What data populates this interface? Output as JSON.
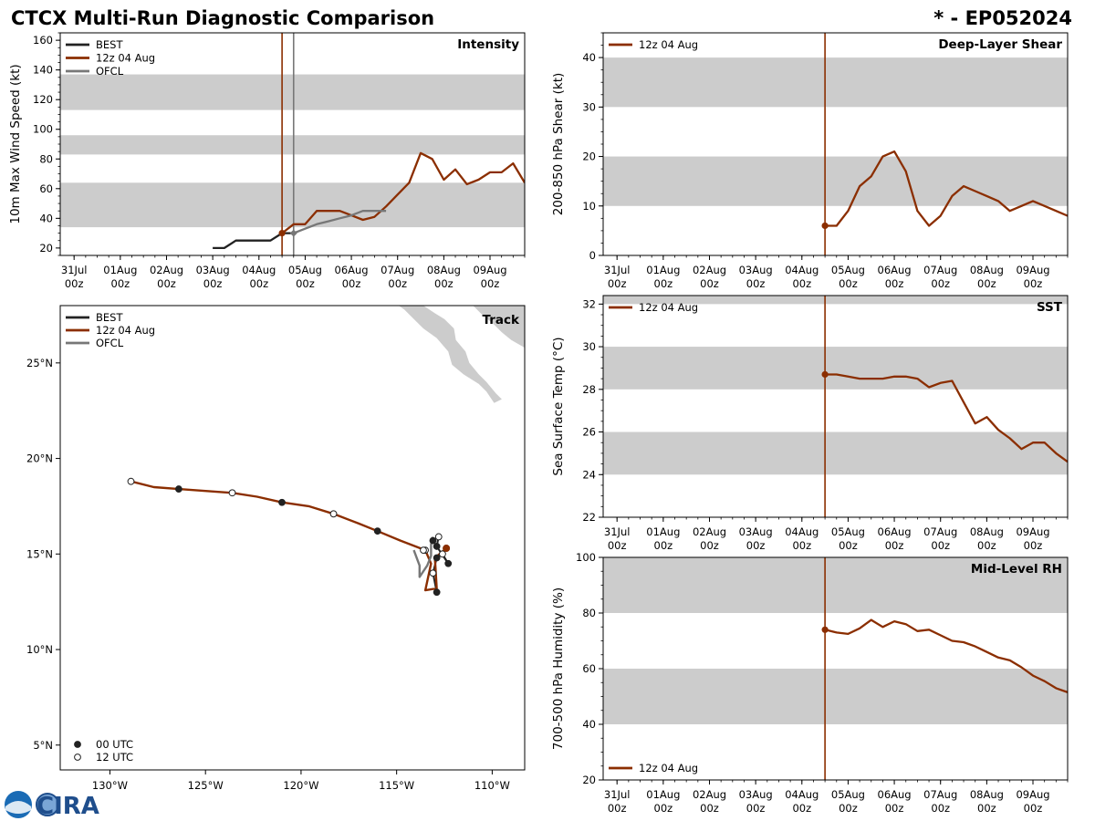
{
  "header": {
    "title": "CTCX Multi-Run Diagnostic Comparison",
    "storm": "* - EP052024"
  },
  "colors": {
    "best": "#222222",
    "run": "#8b2e00",
    "ofcl": "#777777",
    "band": "#cccccc",
    "land": "#cccccc"
  },
  "logo": {
    "text": "CIRA",
    "seal_text": "NOAA"
  },
  "chart_data": [
    {
      "id": "intensity",
      "type": "line",
      "title": "Intensity",
      "ylabel": "10m Max Wind Speed (kt)",
      "xlabel": "",
      "xlim": [
        -0.3,
        9.75
      ],
      "ylim": [
        15,
        165
      ],
      "yticks": [
        20,
        40,
        60,
        80,
        100,
        120,
        140,
        160
      ],
      "xticks": [
        0,
        1,
        2,
        3,
        4,
        5,
        6,
        7,
        8,
        9
      ],
      "xtick_labels": [
        [
          "31Jul",
          "00z"
        ],
        [
          "01Aug",
          "00z"
        ],
        [
          "02Aug",
          "00z"
        ],
        [
          "03Aug",
          "00z"
        ],
        [
          "04Aug",
          "00z"
        ],
        [
          "05Aug",
          "00z"
        ],
        [
          "06Aug",
          "00z"
        ],
        [
          "07Aug",
          "00z"
        ],
        [
          "08Aug",
          "00z"
        ],
        [
          "09Aug",
          "00z"
        ]
      ],
      "bands": [
        [
          34,
          64
        ],
        [
          83,
          96
        ],
        [
          113,
          137
        ]
      ],
      "vlines": [
        {
          "x": 4.5,
          "series": "run"
        },
        {
          "x": 4.75,
          "series": "ofcl"
        }
      ],
      "legend": [
        {
          "label": "BEST",
          "series": "best"
        },
        {
          "label": "12z 04 Aug",
          "series": "run"
        },
        {
          "label": "OFCL",
          "series": "ofcl"
        }
      ],
      "series": [
        {
          "name": "BEST",
          "key": "best",
          "x": [
            3.0,
            3.25,
            3.5,
            3.75,
            4.0,
            4.25,
            4.5,
            4.75
          ],
          "y": [
            20,
            20,
            25,
            25,
            25,
            25,
            30,
            30
          ]
        },
        {
          "name": "12z 04 Aug",
          "key": "run",
          "x": [
            4.5,
            4.75,
            5.0,
            5.25,
            5.5,
            5.75,
            6.0,
            6.25,
            6.5,
            6.75,
            7.0,
            7.25,
            7.5,
            7.75,
            8.0,
            8.25,
            8.5,
            8.75,
            9.0,
            9.25,
            9.5,
            9.75
          ],
          "y": [
            30,
            36,
            36,
            45,
            45,
            45,
            42,
            39,
            41,
            48,
            56,
            64,
            84,
            80,
            66,
            73,
            63,
            66,
            71,
            71,
            77,
            64
          ],
          "start_marker": true
        },
        {
          "name": "OFCL",
          "key": "ofcl",
          "x": [
            4.75,
            5.0,
            5.25,
            5.5,
            5.75,
            6.0,
            6.25,
            6.5,
            6.75
          ],
          "y": [
            30,
            33,
            36,
            38,
            40,
            42,
            45,
            45,
            45
          ],
          "start_marker": true,
          "marker": "diamond"
        }
      ]
    },
    {
      "id": "shear",
      "type": "line",
      "title": "Deep-Layer Shear",
      "ylabel": "200-850 hPa Shear (kt)",
      "xlabel": "",
      "xlim": [
        -0.3,
        9.75
      ],
      "ylim": [
        0,
        45
      ],
      "yticks": [
        0,
        10,
        20,
        30,
        40
      ],
      "xticks": [
        0,
        1,
        2,
        3,
        4,
        5,
        6,
        7,
        8,
        9
      ],
      "xtick_labels": [
        [
          "31Jul",
          "00z"
        ],
        [
          "01Aug",
          "00z"
        ],
        [
          "02Aug",
          "00z"
        ],
        [
          "03Aug",
          "00z"
        ],
        [
          "04Aug",
          "00z"
        ],
        [
          "05Aug",
          "00z"
        ],
        [
          "06Aug",
          "00z"
        ],
        [
          "07Aug",
          "00z"
        ],
        [
          "08Aug",
          "00z"
        ],
        [
          "09Aug",
          "00z"
        ]
      ],
      "bands": [
        [
          10,
          20
        ],
        [
          30,
          40
        ]
      ],
      "vlines": [
        {
          "x": 4.5,
          "series": "run"
        }
      ],
      "legend": [
        {
          "label": "12z 04 Aug",
          "series": "run"
        }
      ],
      "series": [
        {
          "name": "12z 04 Aug",
          "key": "run",
          "x": [
            4.5,
            4.75,
            5.0,
            5.25,
            5.5,
            5.75,
            6.0,
            6.25,
            6.5,
            6.75,
            7.0,
            7.25,
            7.5,
            7.75,
            8.0,
            8.25,
            8.5,
            8.75,
            9.0,
            9.25,
            9.5,
            9.75
          ],
          "y": [
            6,
            6,
            9,
            14,
            16,
            20,
            21,
            17,
            9,
            6,
            8,
            12,
            14,
            13,
            12,
            11,
            9,
            10,
            11,
            10,
            9,
            8
          ],
          "start_marker": true
        }
      ]
    },
    {
      "id": "sst",
      "type": "line",
      "title": "SST",
      "ylabel": "Sea Surface Temp (°C)",
      "xlabel": "",
      "xlim": [
        -0.3,
        9.75
      ],
      "ylim": [
        22,
        32.4
      ],
      "yticks": [
        22,
        24,
        26,
        28,
        30,
        32
      ],
      "xticks": [
        0,
        1,
        2,
        3,
        4,
        5,
        6,
        7,
        8,
        9
      ],
      "xtick_labels": [
        [
          "31Jul",
          "00z"
        ],
        [
          "01Aug",
          "00z"
        ],
        [
          "02Aug",
          "00z"
        ],
        [
          "03Aug",
          "00z"
        ],
        [
          "04Aug",
          "00z"
        ],
        [
          "05Aug",
          "00z"
        ],
        [
          "06Aug",
          "00z"
        ],
        [
          "07Aug",
          "00z"
        ],
        [
          "08Aug",
          "00z"
        ],
        [
          "09Aug",
          "00z"
        ]
      ],
      "bands": [
        [
          24,
          26
        ],
        [
          28,
          30
        ],
        [
          32,
          34
        ]
      ],
      "vlines": [
        {
          "x": 4.5,
          "series": "run"
        }
      ],
      "legend": [
        {
          "label": "12z 04 Aug",
          "series": "run"
        }
      ],
      "series": [
        {
          "name": "12z 04 Aug",
          "key": "run",
          "x": [
            4.5,
            4.75,
            5.0,
            5.25,
            5.5,
            5.75,
            6.0,
            6.25,
            6.5,
            6.75,
            7.0,
            7.25,
            7.5,
            7.75,
            8.0,
            8.25,
            8.5,
            8.75,
            9.0,
            9.25,
            9.5,
            9.75
          ],
          "y": [
            28.7,
            28.7,
            28.6,
            28.5,
            28.5,
            28.5,
            28.6,
            28.6,
            28.5,
            28.1,
            28.3,
            28.4,
            27.4,
            26.4,
            26.7,
            26.1,
            25.7,
            25.2,
            25.5,
            25.5,
            25.0,
            24.6
          ],
          "start_marker": true
        }
      ]
    },
    {
      "id": "rh",
      "type": "line",
      "title": "Mid-Level RH",
      "ylabel": "700-500 hPa Humidity (%)",
      "xlabel": "",
      "xlim": [
        -0.3,
        9.75
      ],
      "ylim": [
        20,
        100
      ],
      "yticks": [
        20,
        40,
        60,
        80,
        100
      ],
      "xticks": [
        0,
        1,
        2,
        3,
        4,
        5,
        6,
        7,
        8,
        9
      ],
      "xtick_labels": [
        [
          "31Jul",
          "00z"
        ],
        [
          "01Aug",
          "00z"
        ],
        [
          "02Aug",
          "00z"
        ],
        [
          "03Aug",
          "00z"
        ],
        [
          "04Aug",
          "00z"
        ],
        [
          "05Aug",
          "00z"
        ],
        [
          "06Aug",
          "00z"
        ],
        [
          "07Aug",
          "00z"
        ],
        [
          "08Aug",
          "00z"
        ],
        [
          "09Aug",
          "00z"
        ]
      ],
      "bands": [
        [
          40,
          60
        ],
        [
          80,
          100
        ]
      ],
      "vlines": [
        {
          "x": 4.5,
          "series": "run"
        }
      ],
      "legend": [
        {
          "label": "12z 04 Aug",
          "series": "run"
        }
      ],
      "legend_loc": "lower-left",
      "series": [
        {
          "name": "12z 04 Aug",
          "key": "run",
          "x": [
            4.5,
            4.75,
            5.0,
            5.25,
            5.5,
            5.75,
            6.0,
            6.25,
            6.5,
            6.75,
            7.0,
            7.25,
            7.5,
            7.75,
            8.0,
            8.25,
            8.5,
            8.75,
            9.0,
            9.25,
            9.5,
            9.75
          ],
          "y": [
            74,
            73,
            72.5,
            74.5,
            77.5,
            75,
            77,
            76,
            73.5,
            74,
            72,
            70,
            69.5,
            68,
            66,
            64,
            63,
            60.5,
            57.5,
            55.5,
            53,
            51.5
          ],
          "start_marker": true
        }
      ]
    },
    {
      "id": "track",
      "type": "scatter",
      "title": "Track",
      "xlabel": "",
      "ylabel": "",
      "xlim": [
        -132.6,
        -108.3
      ],
      "ylim": [
        3.7,
        28.0
      ],
      "xticks": [
        -130,
        -125,
        -120,
        -115,
        -110
      ],
      "xtick_labels": [
        "130°W",
        "125°W",
        "120°W",
        "115°W",
        "110°W"
      ],
      "yticks": [
        5,
        10,
        15,
        20,
        25
      ],
      "ytick_labels": [
        "5°N",
        "10°N",
        "15°N",
        "20°N",
        "25°N"
      ],
      "legend": [
        {
          "label": "BEST",
          "series": "best"
        },
        {
          "label": "12z 04 Aug",
          "series": "run"
        },
        {
          "label": "OFCL",
          "series": "ofcl"
        }
      ],
      "marker_legend": [
        {
          "label": "00 UTC",
          "fill": "filled"
        },
        {
          "label": "12 UTC",
          "fill": "open"
        }
      ],
      "series": [
        {
          "name": "BEST",
          "key": "best",
          "points": [
            [
              -112.9,
              13.0
            ],
            [
              -113.1,
              14.0
            ],
            [
              -112.9,
              14.8
            ],
            [
              -112.6,
              15.0
            ],
            [
              -112.3,
              14.5
            ],
            [
              -112.9,
              15.4
            ],
            [
              -112.8,
              15.9
            ]
          ]
        },
        {
          "name": "12z 04 Aug",
          "key": "run",
          "points": [
            [
              -112.4,
              15.3
            ],
            [
              -113.0,
              14.8
            ],
            [
              -112.9,
              13.2
            ],
            [
              -113.5,
              13.1
            ],
            [
              -113.2,
              14.5
            ],
            [
              -113.5,
              15.2
            ],
            [
              -114.8,
              15.7
            ],
            [
              -116.0,
              16.2
            ],
            [
              -117.0,
              16.6
            ],
            [
              -118.3,
              17.1
            ],
            [
              -119.6,
              17.5
            ],
            [
              -121.0,
              17.7
            ],
            [
              -122.3,
              18.0
            ],
            [
              -123.6,
              18.2
            ],
            [
              -125.0,
              18.3
            ],
            [
              -126.4,
              18.4
            ],
            [
              -127.7,
              18.5
            ],
            [
              -128.9,
              18.8
            ]
          ],
          "markers": [
            [
              -112.4,
              15.3,
              "filled"
            ],
            [
              -113.5,
              15.2,
              "open"
            ],
            [
              -116.0,
              16.2,
              "filled"
            ],
            [
              -118.3,
              17.1,
              "open"
            ],
            [
              -121.0,
              17.7,
              "filled"
            ],
            [
              -123.6,
              18.2,
              "open"
            ],
            [
              -126.4,
              18.4,
              "filled"
            ],
            [
              -128.9,
              18.8,
              "open"
            ]
          ]
        },
        {
          "name": "OFCL",
          "key": "ofcl",
          "points": [
            [
              -113.1,
              15.9
            ],
            [
              -113.2,
              15.5
            ],
            [
              -113.2,
              14.9
            ],
            [
              -113.4,
              14.4
            ],
            [
              -113.8,
              13.8
            ],
            [
              -113.8,
              14.4
            ],
            [
              -114.1,
              15.2
            ]
          ]
        }
      ],
      "best_markers": [
        [
          -112.9,
          13.0,
          "filled"
        ],
        [
          -113.1,
          14.0,
          "open"
        ],
        [
          -112.9,
          14.8,
          "filled"
        ],
        [
          -112.6,
          15.0,
          "open"
        ],
        [
          -112.3,
          14.5,
          "filled"
        ],
        [
          -112.9,
          15.4,
          "filled"
        ],
        [
          -112.8,
          15.9,
          "open"
        ],
        [
          -113.6,
          15.2,
          "open"
        ],
        [
          -113.1,
          15.7,
          "filled"
        ]
      ]
    }
  ]
}
